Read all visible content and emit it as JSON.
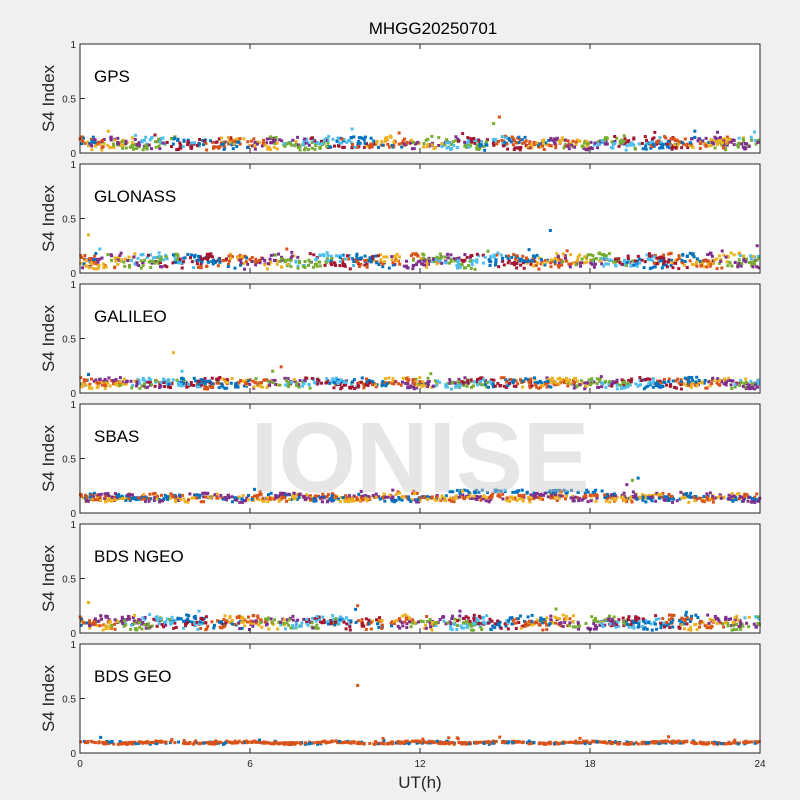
{
  "chart_data": {
    "type": "scatter",
    "title": "MHGG20250701",
    "xlabel": "UT(h)",
    "ylabel": "S4 Index",
    "xlim": [
      0,
      24
    ],
    "ylim": [
      0,
      1
    ],
    "xticks": [
      "0",
      "6",
      "12",
      "18",
      "24"
    ],
    "yticks": [
      "0",
      "0.5",
      "1"
    ],
    "grid": false,
    "watermark": "IONISE",
    "series_colors": [
      "#0072BD",
      "#D95319",
      "#EDB120",
      "#7E2F8E",
      "#77AC30",
      "#4DBEEE",
      "#A2142F"
    ],
    "panels": [
      {
        "name": "GPS",
        "typical_s4": [
          0.03,
          0.15
        ],
        "colors": 7,
        "notable_points": [
          [
            1.0,
            0.2
          ],
          [
            9.6,
            0.22
          ],
          [
            14.8,
            0.33
          ],
          [
            14.6,
            0.27
          ],
          [
            21.7,
            0.2
          ],
          [
            22.5,
            0.19
          ]
        ]
      },
      {
        "name": "GLONASS",
        "typical_s4": [
          0.04,
          0.18
        ],
        "colors": 7,
        "notable_points": [
          [
            0.3,
            0.35
          ],
          [
            0.7,
            0.22
          ],
          [
            7.3,
            0.22
          ],
          [
            14.4,
            0.2
          ],
          [
            16.6,
            0.39
          ],
          [
            23.9,
            0.25
          ]
        ]
      },
      {
        "name": "GALILEO",
        "typical_s4": [
          0.04,
          0.14
        ],
        "colors": 7,
        "notable_points": [
          [
            3.3,
            0.37
          ],
          [
            3.6,
            0.2
          ],
          [
            7.1,
            0.24
          ],
          [
            6.8,
            0.2
          ],
          [
            0.3,
            0.17
          ]
        ]
      },
      {
        "name": "SBAS",
        "typical_s4": [
          0.1,
          0.18
        ],
        "colors": 4,
        "notable_points": [
          [
            13.5,
            0.2
          ],
          [
            15.0,
            0.21
          ],
          [
            17.0,
            0.2
          ],
          [
            19.5,
            0.3
          ],
          [
            19.7,
            0.32
          ],
          [
            19.3,
            0.26
          ]
        ]
      },
      {
        "name": "BDS NGEO",
        "typical_s4": [
          0.03,
          0.16
        ],
        "colors": 7,
        "notable_points": [
          [
            0.3,
            0.28
          ],
          [
            4.2,
            0.2
          ],
          [
            9.8,
            0.25
          ],
          [
            16.8,
            0.22
          ],
          [
            21.4,
            0.19
          ]
        ]
      },
      {
        "name": "BDS GEO",
        "typical_s4": [
          0.08,
          0.11
        ],
        "colors": 2,
        "notable_points": [
          [
            9.8,
            0.62
          ]
        ]
      }
    ]
  }
}
